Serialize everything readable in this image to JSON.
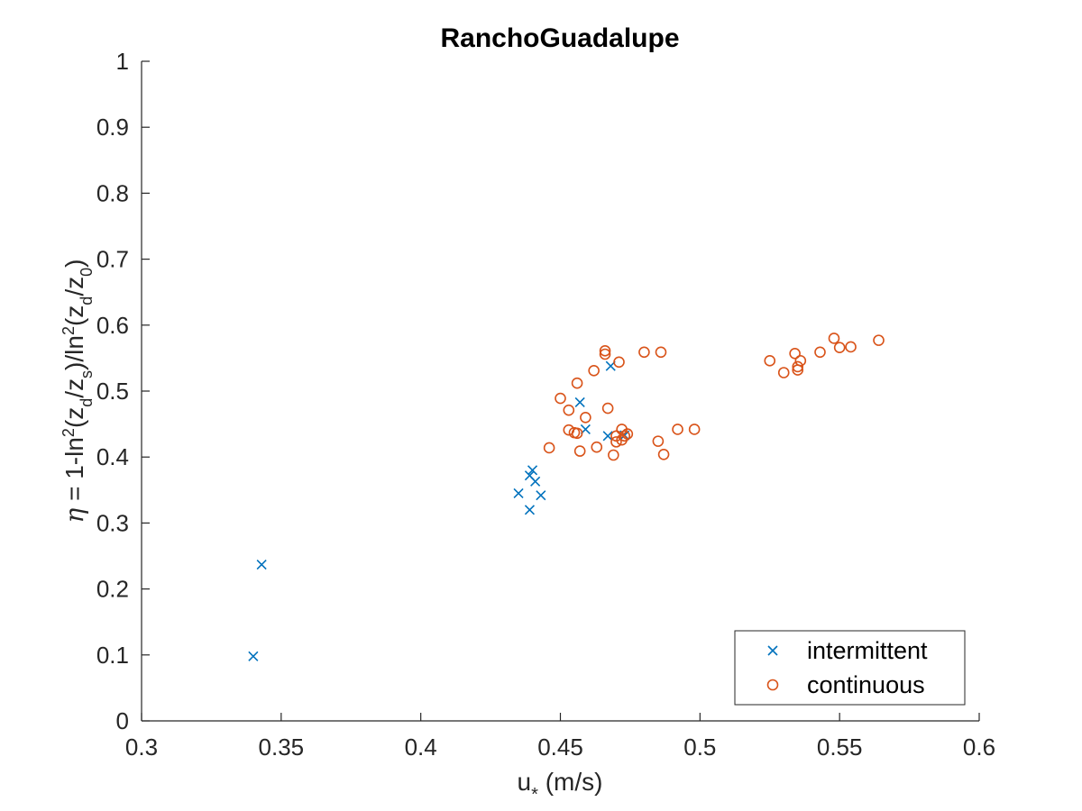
{
  "chart_data": {
    "type": "scatter",
    "title": "RanchoGuadalupe",
    "xlabel": "u* (m/s)",
    "ylabel": "η = 1-ln²(zd/zs)/ln²(zd/z0)",
    "xlim": [
      0.3,
      0.6
    ],
    "ylim": [
      0,
      1
    ],
    "xticks": [
      0.3,
      0.35,
      0.4,
      0.45,
      0.5,
      0.55,
      0.6
    ],
    "xtick_labels": [
      "0.3",
      "0.35",
      "0.4",
      "0.45",
      "0.5",
      "0.55",
      "0.6"
    ],
    "yticks": [
      0,
      0.1,
      0.2,
      0.3,
      0.4,
      0.5,
      0.6,
      0.7,
      0.8,
      0.9,
      1
    ],
    "ytick_labels": [
      "0",
      "0.1",
      "0.2",
      "0.3",
      "0.4",
      "0.5",
      "0.6",
      "0.7",
      "0.8",
      "0.9",
      "1"
    ],
    "grid": false,
    "legend_position": "bottom-right",
    "series": [
      {
        "name": "intermittent",
        "marker": "x",
        "color": "#0072BD",
        "points": [
          [
            0.34,
            0.098
          ],
          [
            0.343,
            0.237
          ],
          [
            0.435,
            0.345
          ],
          [
            0.439,
            0.372
          ],
          [
            0.44,
            0.38
          ],
          [
            0.441,
            0.363
          ],
          [
            0.443,
            0.342
          ],
          [
            0.439,
            0.32
          ],
          [
            0.457,
            0.483
          ],
          [
            0.459,
            0.442
          ],
          [
            0.467,
            0.432
          ],
          [
            0.468,
            0.538
          ],
          [
            0.473,
            0.433
          ]
        ]
      },
      {
        "name": "continuous",
        "marker": "o",
        "color": "#D95319",
        "points": [
          [
            0.446,
            0.414
          ],
          [
            0.45,
            0.489
          ],
          [
            0.453,
            0.471
          ],
          [
            0.453,
            0.441
          ],
          [
            0.455,
            0.437
          ],
          [
            0.456,
            0.436
          ],
          [
            0.456,
            0.512
          ],
          [
            0.457,
            0.409
          ],
          [
            0.459,
            0.46
          ],
          [
            0.462,
            0.531
          ],
          [
            0.463,
            0.415
          ],
          [
            0.466,
            0.561
          ],
          [
            0.466,
            0.556
          ],
          [
            0.467,
            0.474
          ],
          [
            0.469,
            0.403
          ],
          [
            0.47,
            0.432
          ],
          [
            0.47,
            0.423
          ],
          [
            0.471,
            0.544
          ],
          [
            0.472,
            0.426
          ],
          [
            0.472,
            0.442
          ],
          [
            0.473,
            0.432
          ],
          [
            0.474,
            0.435
          ],
          [
            0.48,
            0.559
          ],
          [
            0.485,
            0.424
          ],
          [
            0.486,
            0.559
          ],
          [
            0.487,
            0.404
          ],
          [
            0.492,
            0.442
          ],
          [
            0.498,
            0.442
          ],
          [
            0.525,
            0.546
          ],
          [
            0.53,
            0.528
          ],
          [
            0.534,
            0.557
          ],
          [
            0.535,
            0.532
          ],
          [
            0.535,
            0.537
          ],
          [
            0.536,
            0.546
          ],
          [
            0.543,
            0.559
          ],
          [
            0.548,
            0.58
          ],
          [
            0.55,
            0.566
          ],
          [
            0.554,
            0.567
          ],
          [
            0.564,
            0.577
          ]
        ]
      }
    ]
  }
}
